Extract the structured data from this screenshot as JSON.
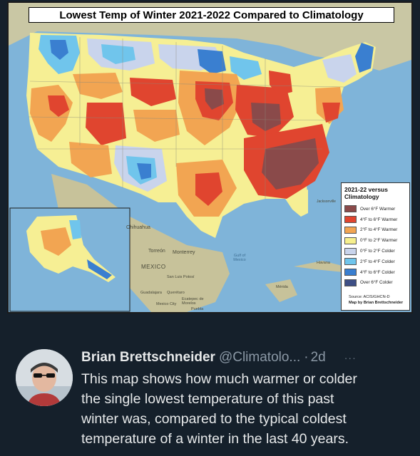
{
  "map": {
    "title": "Lowest Temp of Winter 2021-2022 Compared to Climatology",
    "labels": {
      "mexico": "MEXICO",
      "gulf": "Gulf of Mexico",
      "chihuahua": "Chihuahua",
      "torreon": "Torreón",
      "monterrey": "Monterrey",
      "san_luis_potosi": "San Luis Potosí",
      "guadalajara": "Guadalajara",
      "queretaro": "Querétaro",
      "mexico_city": "Mexico City",
      "ecatepec": "Ecatepec de Morelos",
      "puebla": "Puebla",
      "havana": "Havana",
      "merida": "Mérida",
      "jacksonville": "Jacksonville"
    },
    "legend": {
      "title_line1": "2021-22 versus",
      "title_line2": "Climatology",
      "items": [
        {
          "label": "Over 6°F Warmer",
          "color": "#8a4a4a"
        },
        {
          "label": "4°F to 6°F Warmer",
          "color": "#e0452f"
        },
        {
          "label": "2°F to 4°F Warmer",
          "color": "#f2a552"
        },
        {
          "label": "0°F to 2°F Warmer",
          "color": "#f7f08e"
        },
        {
          "label": "0°F to 2°F Colder",
          "color": "#c9d4ec"
        },
        {
          "label": "2°F to 4°F Colder",
          "color": "#70c5ec"
        },
        {
          "label": "4°F to 6°F Colder",
          "color": "#3a7fd0"
        },
        {
          "label": "Over 6°F Colder",
          "color": "#3e4f86"
        }
      ],
      "source": "Source: ACIS/GHCN-D",
      "credit": "Map by Brian Brettschneider"
    }
  },
  "tweet": {
    "author": "Brian Brettschneider",
    "handle": "@Climatolo...",
    "separator": "·",
    "time": "2d",
    "more": "···",
    "text_lines": [
      "This map shows how much warmer or colder",
      "the single lowest temperature of this past",
      "winter was, compared to the typical coldest",
      "temperature of a winter in the last 40 years."
    ]
  }
}
